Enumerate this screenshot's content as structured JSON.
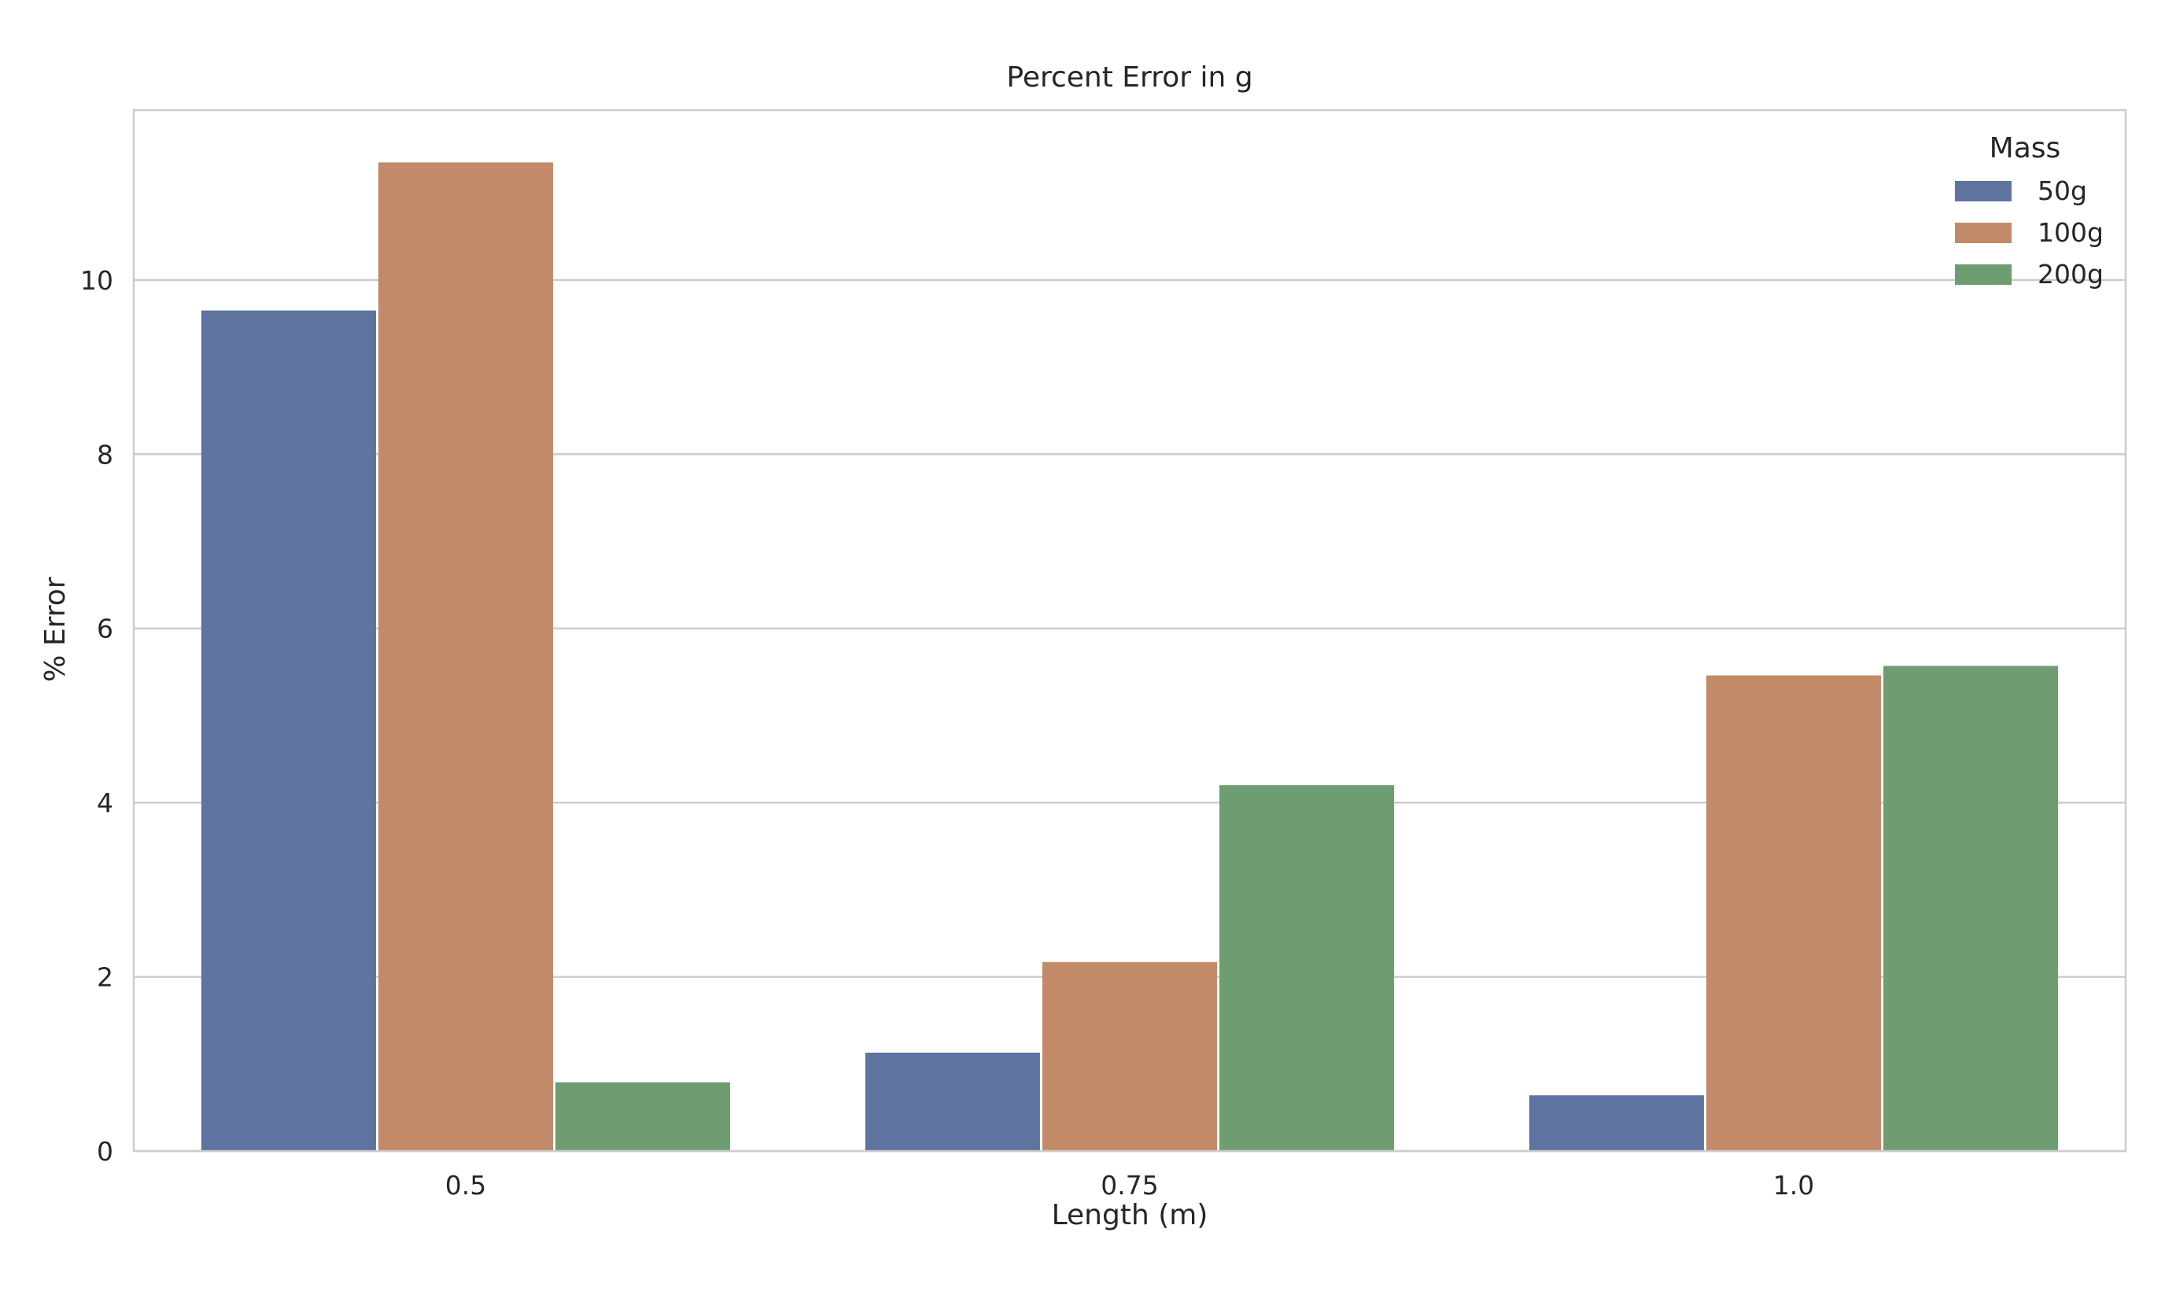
{
  "chart_data": {
    "type": "bar",
    "title": "Percent Error in g",
    "xlabel": "Length (m)",
    "ylabel": "% Error",
    "categories": [
      "0.5",
      "0.75",
      "1.0"
    ],
    "ylim": [
      0,
      11.95
    ],
    "yticks": [
      0,
      2,
      4,
      6,
      8,
      10
    ],
    "grid": true,
    "legend_position": "top-right",
    "legend_title": "Mass",
    "series": [
      {
        "name": "50g",
        "color": "#5f73a0",
        "values": [
          9.65,
          1.13,
          0.64
        ]
      },
      {
        "name": "100g",
        "color": "#c28a68",
        "values": [
          11.35,
          2.17,
          5.46
        ]
      },
      {
        "name": "200g",
        "color": "#6d9d70",
        "values": [
          0.79,
          4.2,
          5.57
        ]
      }
    ]
  }
}
